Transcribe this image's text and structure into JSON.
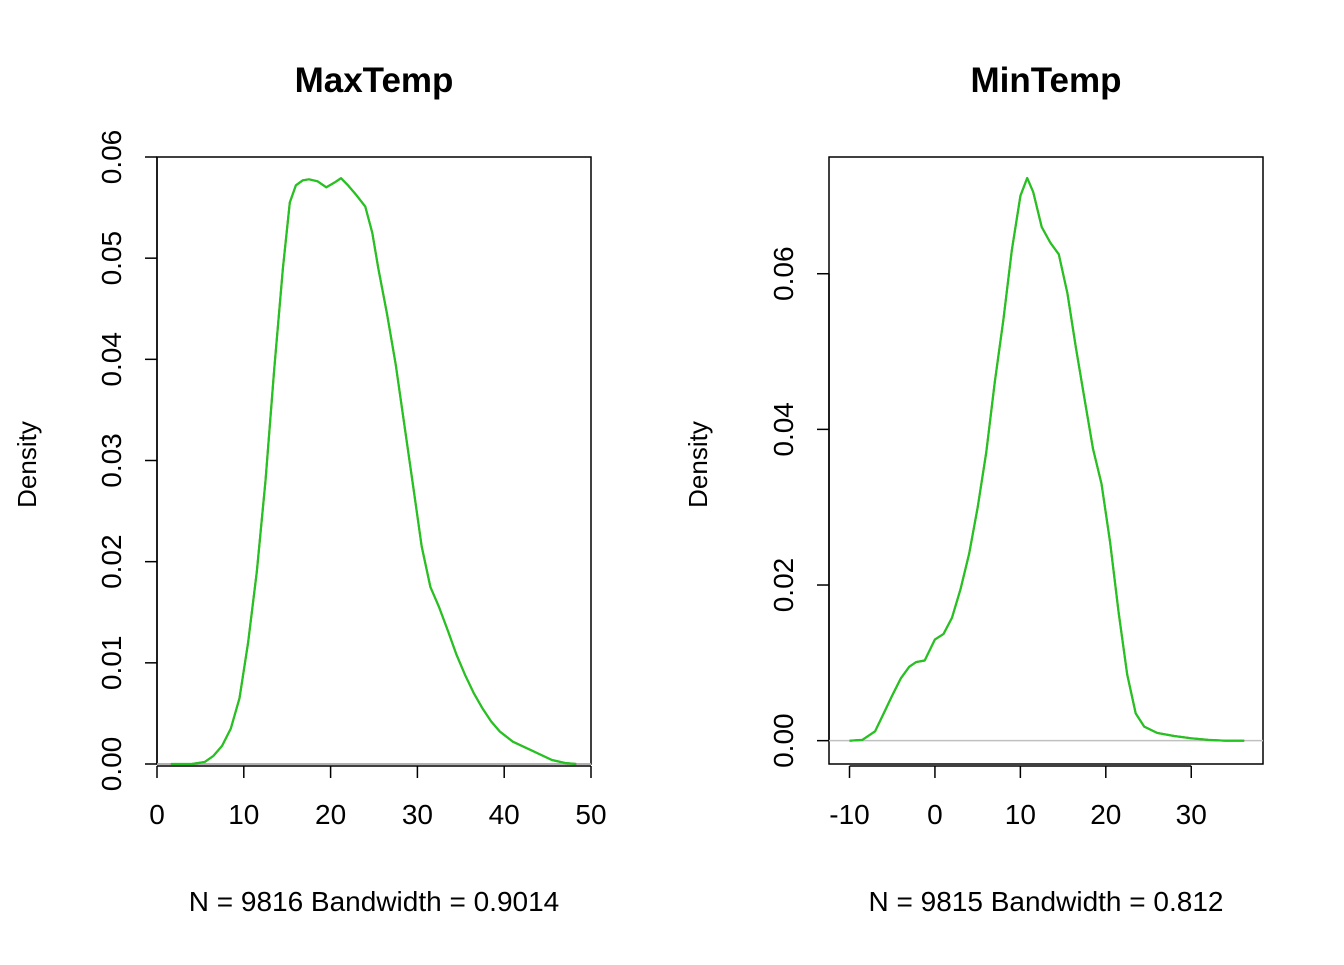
{
  "chart_data": [
    {
      "type": "line",
      "title": "MaxTemp",
      "xlabel": "N = 9816   Bandwidth = 0.9014",
      "ylabel": "Density",
      "xlim": [
        0,
        50
      ],
      "ylim": [
        0,
        0.06
      ],
      "x_ticks": [
        0,
        10,
        20,
        30,
        40,
        50
      ],
      "x_tick_labels": [
        "0",
        "10",
        "20",
        "30",
        "40",
        "50"
      ],
      "y_ticks": [
        0,
        0.01,
        0.02,
        0.03,
        0.04,
        0.05,
        0.06
      ],
      "y_tick_labels": [
        "0.00",
        "0.01",
        "0.02",
        "0.03",
        "0.04",
        "0.05",
        "0.06"
      ],
      "grid": false,
      "baseline": 0,
      "colors": {
        "line": "#22c422",
        "underline": "#e02020",
        "baseline": "#c0c0c0"
      },
      "series": [
        {
          "x": [
            1.6,
            4,
            5.5,
            6.5,
            7.5,
            8.5,
            9.5,
            10.5,
            11.5,
            12.5,
            13.5,
            14.5,
            15.3,
            16,
            16.8,
            17.5,
            18.5,
            19.5,
            20.5,
            21.2,
            22,
            23,
            24,
            24.8,
            25.5,
            26.5,
            27.5,
            28.5,
            29.5,
            30.5,
            31.5,
            32.5,
            33.5,
            34.5,
            35.5,
            36.5,
            37.5,
            38.5,
            39.5,
            41,
            42.5,
            44,
            45.5,
            47,
            48.3
          ],
          "y": [
            0,
            0,
            0.0002,
            0.0008,
            0.0018,
            0.0035,
            0.0065,
            0.012,
            0.019,
            0.028,
            0.039,
            0.049,
            0.0555,
            0.0572,
            0.0577,
            0.0578,
            0.0576,
            0.057,
            0.0575,
            0.0579,
            0.0572,
            0.0562,
            0.0551,
            0.0525,
            0.049,
            0.0445,
            0.0395,
            0.0335,
            0.0275,
            0.0215,
            0.0175,
            0.0155,
            0.0132,
            0.0108,
            0.0088,
            0.007,
            0.0055,
            0.0042,
            0.0032,
            0.0022,
            0.0016,
            0.001,
            0.0004,
            0.0001,
            0
          ]
        }
      ]
    },
    {
      "type": "line",
      "title": "MinTemp",
      "xlabel": "N = 9815   Bandwidth = 0.812",
      "ylabel": "Density",
      "xlim": [
        -12.4,
        38.4
      ],
      "ylim": [
        -0.003,
        0.075
      ],
      "x_ticks": [
        -10,
        0,
        10,
        20,
        30
      ],
      "x_tick_labels": [
        "-10",
        "0",
        "10",
        "20",
        "30"
      ],
      "y_ticks": [
        0,
        0.02,
        0.04,
        0.06
      ],
      "y_tick_labels": [
        "0.00",
        "0.02",
        "0.04",
        "0.06"
      ],
      "grid": false,
      "baseline": 0,
      "colors": {
        "line": "#22c422",
        "underline": "#e02020",
        "baseline": "#c0c0c0"
      },
      "series": [
        {
          "x": [
            -10,
            -8.5,
            -7,
            -6,
            -5,
            -4,
            -3,
            -2.2,
            -1.2,
            0,
            1,
            2,
            3,
            4,
            5,
            6,
            7,
            8,
            9,
            10,
            10.8,
            11.5,
            12.5,
            13.5,
            14.5,
            15.5,
            16.5,
            17.5,
            18.5,
            19.5,
            20.5,
            21.5,
            22.5,
            23.5,
            24.5,
            26,
            28,
            30,
            32,
            34,
            36.2
          ],
          "y": [
            0,
            0.0001,
            0.0012,
            0.0035,
            0.0058,
            0.008,
            0.0095,
            0.0101,
            0.0103,
            0.013,
            0.0137,
            0.0158,
            0.0195,
            0.024,
            0.03,
            0.037,
            0.046,
            0.054,
            0.063,
            0.07,
            0.0723,
            0.0705,
            0.066,
            0.064,
            0.0625,
            0.0575,
            0.0505,
            0.044,
            0.0375,
            0.033,
            0.0255,
            0.0165,
            0.0085,
            0.0035,
            0.0018,
            0.001,
            0.0006,
            0.0003,
            0.0001,
            0,
            0
          ]
        }
      ]
    }
  ]
}
